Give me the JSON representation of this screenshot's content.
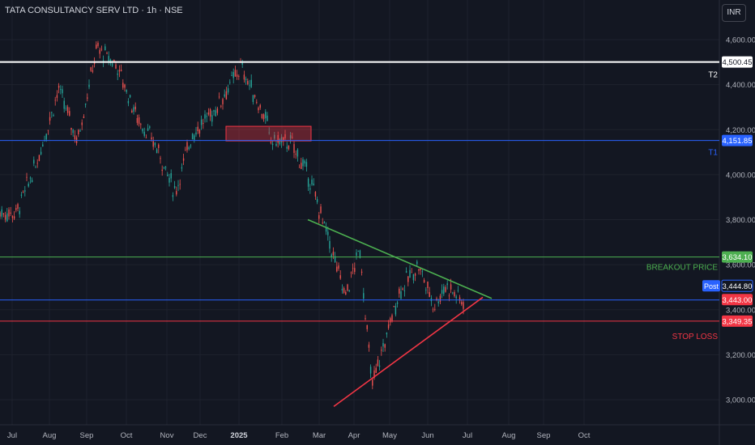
{
  "header": {
    "symbol_title": "TATA CONSULTANCY SERV LTD · 1h · NSE",
    "currency_button": "INR"
  },
  "chart_data": {
    "type": "candlestick",
    "title": "TATA CONSULTANCY SERV LTD · 1h · NSE",
    "y_axis": {
      "range": [
        2950,
        4700
      ],
      "ticks": [
        "3,000.00",
        "3,200.00",
        "3,400.00",
        "3,600.00",
        "3,800.00",
        "4,000.00",
        "4,200.00",
        "4,400.00",
        "4,600.00"
      ]
    },
    "x_axis": {
      "labels": [
        "Jul",
        "Aug",
        "Sep",
        "Oct",
        "Nov",
        "Dec",
        "2025",
        "Feb",
        "Mar",
        "Apr",
        "May",
        "Jun",
        "Jul",
        "Aug",
        "Sep",
        "Oct"
      ]
    },
    "price_path": [
      {
        "x": "Jul",
        "y": 3830
      },
      {
        "x": "Jul",
        "y": 4050
      },
      {
        "x": "Aug",
        "y": 4380
      },
      {
        "x": "Aug",
        "y": 4150
      },
      {
        "x": "Sep",
        "y": 4560
      },
      {
        "x": "Sep",
        "y": 4490
      },
      {
        "x": "Oct",
        "y": 4260
      },
      {
        "x": "Oct",
        "y": 4120
      },
      {
        "x": "Nov",
        "y": 3920
      },
      {
        "x": "Nov",
        "y": 4180
      },
      {
        "x": "Dec",
        "y": 4280
      },
      {
        "x": "Dec",
        "y": 4480
      },
      {
        "x": "Dec",
        "y": 4220
      },
      {
        "x": "2025",
        "y": 4100
      },
      {
        "x": "2025",
        "y": 4300
      },
      {
        "x": "Feb",
        "y": 4140
      },
      {
        "x": "Feb",
        "y": 3980
      },
      {
        "x": "Mar",
        "y": 3720
      },
      {
        "x": "Mar",
        "y": 3460
      },
      {
        "x": "Apr",
        "y": 3670
      },
      {
        "x": "Apr",
        "y": 3060
      },
      {
        "x": "Apr",
        "y": 3240
      },
      {
        "x": "May",
        "y": 3480
      },
      {
        "x": "May",
        "y": 3600
      },
      {
        "x": "Jun",
        "y": 3420
      },
      {
        "x": "Jun",
        "y": 3510
      },
      {
        "x": "Jun",
        "y": 3440
      }
    ],
    "horizontal_levels": [
      {
        "name": "T2",
        "value": 4500.45,
        "label": "4,500.45",
        "color": "#ffffff"
      },
      {
        "name": "T1",
        "value": 4151.85,
        "label": "4,151.85",
        "color": "#2962ff"
      },
      {
        "name": "BREAKOUT PRICE",
        "value": 3634.1,
        "label": "3,634.10",
        "color": "#4caf50"
      },
      {
        "name": "STOP LOSS",
        "value": 3349.35,
        "label": "3,349.35",
        "color": "#f23645"
      },
      {
        "name": "",
        "value": 3443.0,
        "label": "3,443.00",
        "color": "#2962ff"
      }
    ],
    "annotations": [
      "T2",
      "T1",
      "BREAKOUT PRICE",
      "STOP LOSS"
    ],
    "post_market": {
      "tag": "Post",
      "value": "3,444.80"
    },
    "trendlines": [
      {
        "role": "resistance",
        "color": "#4caf50",
        "from": {
          "x": "Feb",
          "y": 3800
        },
        "to": {
          "x": "Jul",
          "y": 3450
        }
      },
      {
        "role": "support",
        "color": "#f23645",
        "from": {
          "x": "Mar",
          "y": 2970
        },
        "to": {
          "x": "Jul",
          "y": 3455
        }
      }
    ],
    "zone": {
      "color": "#f23645",
      "y_range": [
        4150,
        4215
      ]
    }
  }
}
